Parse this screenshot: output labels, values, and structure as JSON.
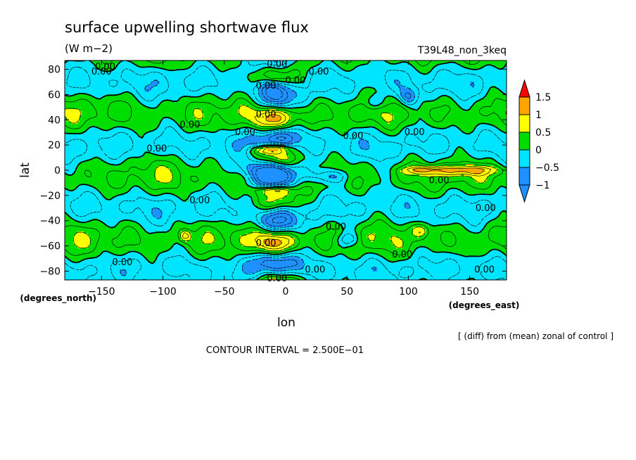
{
  "chart_data": {
    "type": "heatmap",
    "title": "surface upwelling shortwave flux",
    "units": "(W m−2)",
    "experiment": "T39L48_non_3keq",
    "xlabel": "lon",
    "ylabel": "lat",
    "xunits": "(degrees_east)",
    "yunits": "(degrees_north)",
    "xlim": [
      -180,
      180
    ],
    "ylim": [
      -87,
      87
    ],
    "xticks": [
      -150,
      -100,
      -50,
      0,
      50,
      100,
      150
    ],
    "yticks": [
      -80,
      -60,
      -40,
      -20,
      0,
      20,
      40,
      60,
      80
    ],
    "xtick_labels": [
      "−150",
      "−100",
      "−50",
      "0",
      "50",
      "100",
      "150"
    ],
    "ytick_labels": [
      "−80",
      "−60",
      "−40",
      "−20",
      "0",
      "20",
      "40",
      "60",
      "80"
    ],
    "contour_interval_text": "CONTOUR INTERVAL = 2.500E−01",
    "note": "[ (diff) from (mean) zonal of control ]",
    "colorbar": {
      "levels": [
        -1,
        -0.5,
        0,
        0.5,
        1,
        1.5
      ],
      "level_labels": [
        "−1",
        "−0.5",
        "0",
        "0.5",
        "1",
        "1.5"
      ],
      "colors": [
        "#1e90ff",
        "#00e5ff",
        "#00dd00",
        "#ffff00",
        "#ffa500",
        "#ff0000"
      ],
      "extend": "both"
    },
    "contour_label_text": "0.00",
    "contour_labels": [
      {
        "lon": -147,
        "lat": 82
      },
      {
        "lon": -150,
        "lat": 78
      },
      {
        "lon": -7,
        "lat": 84
      },
      {
        "lon": 27,
        "lat": 78
      },
      {
        "lon": -16,
        "lat": 67
      },
      {
        "lon": 8,
        "lat": 71
      },
      {
        "lon": -16,
        "lat": 44
      },
      {
        "lon": -78,
        "lat": 36
      },
      {
        "lon": -33,
        "lat": 30
      },
      {
        "lon": 55,
        "lat": 27
      },
      {
        "lon": 105,
        "lat": 30
      },
      {
        "lon": -105,
        "lat": 17
      },
      {
        "lon": 125,
        "lat": -8
      },
      {
        "lon": -70,
        "lat": -24
      },
      {
        "lon": 41,
        "lat": -45
      },
      {
        "lon": 163,
        "lat": -30
      },
      {
        "lon": -16,
        "lat": -58
      },
      {
        "lon": 95,
        "lat": -67
      },
      {
        "lon": -133,
        "lat": -73
      },
      {
        "lon": 24,
        "lat": -79
      },
      {
        "lon": -7,
        "lat": -86
      },
      {
        "lon": 162,
        "lat": -79
      }
    ],
    "anomalies": [
      {
        "lon": -10,
        "lat": 2,
        "slon": 18,
        "slat": 5,
        "amp": -1.2
      },
      {
        "lon": -7,
        "lat": -5,
        "slon": 12,
        "slat": 5,
        "amp": -0.9
      },
      {
        "lon": -15,
        "lat": 16,
        "slon": 9,
        "slat": 2.5,
        "amp": 1.0
      },
      {
        "lon": -5,
        "lat": 18,
        "slon": 8,
        "slat": 2.5,
        "amp": 0.7
      },
      {
        "lon": -10,
        "lat": -16,
        "slon": 12,
        "slat": 2.5,
        "amp": 0.8
      },
      {
        "lon": 145,
        "lat": 0,
        "slon": 20,
        "slat": 2.5,
        "amp": 0.9
      },
      {
        "lon": 110,
        "lat": 0,
        "slon": 10,
        "slat": 2.0,
        "amp": 0.7
      },
      {
        "lon": 35,
        "lat": -5,
        "slon": 12,
        "slat": 4,
        "amp": -0.8
      },
      {
        "lon": 100,
        "lat": 58,
        "slon": 5,
        "slat": 5,
        "amp": -0.8
      },
      {
        "lon": 72,
        "lat": 54,
        "slon": 5,
        "slat": 4,
        "amp": -0.7
      },
      {
        "lon": 50,
        "lat": -55,
        "slon": 6,
        "slat": 4,
        "amp": -0.7
      },
      {
        "lon": 110,
        "lat": -48,
        "slon": 5,
        "slat": 4,
        "amp": 0.7
      },
      {
        "lon": -82,
        "lat": -52,
        "slon": 3,
        "slat": 3,
        "amp": 0.8
      },
      {
        "lon": -12,
        "lat": 66,
        "slon": 10,
        "slat": 4,
        "amp": -0.6
      }
    ]
  }
}
